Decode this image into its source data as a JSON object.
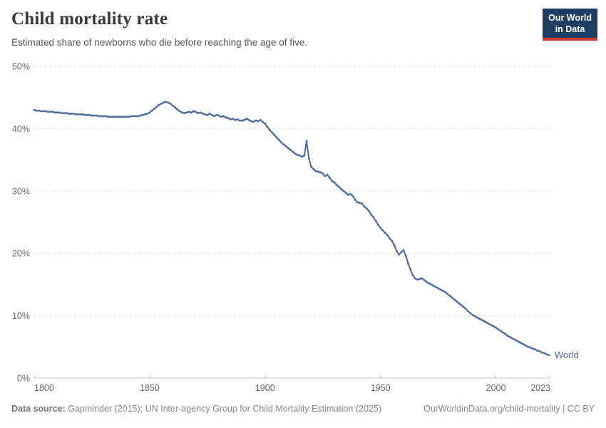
{
  "header": {
    "title": "Child mortality rate",
    "subtitle": "Estimated share of newborns who die before reaching the age of five.",
    "logo_line1": "Our World",
    "logo_line2": "in Data"
  },
  "footer": {
    "source_label": "Data source:",
    "source_text": "Gapminder (2015); UN Inter-agency Group for Child Mortality Estimation (2025)",
    "link": "OurWorldinData.org/child-mortality | CC BY"
  },
  "colors": {
    "line": "#4c6a9d",
    "series_label": "#4c6a9d",
    "grid": "#dedede",
    "axis": "#c0c0c0",
    "tick_text": "#676767",
    "logo_bg": "#1d3d63",
    "logo_red": "#d13c32"
  },
  "chart_data": {
    "type": "line",
    "title": "Child mortality rate",
    "subtitle": "Estimated share of newborns who die before reaching the age of five.",
    "xlabel": "",
    "ylabel": "",
    "x_range": [
      1800,
      2023
    ],
    "y_range": [
      0,
      50
    ],
    "grid": "horizontal-dashed",
    "x_tick_values": [
      1800,
      1850,
      1900,
      1950,
      2000,
      2023
    ],
    "x_tick_labels": [
      "1800",
      "1850",
      "1900",
      "1950",
      "2000",
      "2023"
    ],
    "y_tick_values": [
      0,
      10,
      20,
      30,
      40,
      50
    ],
    "y_tick_labels": [
      "0%",
      "10%",
      "20%",
      "30%",
      "40%",
      "50%"
    ],
    "end_label": "World",
    "series": [
      {
        "name": "World",
        "color": "#4c6a9d",
        "x_start": 1800,
        "x_step": 1,
        "values": [
          43.0,
          42.9,
          42.9,
          42.8,
          42.8,
          42.8,
          42.7,
          42.7,
          42.7,
          42.6,
          42.6,
          42.6,
          42.5,
          42.5,
          42.5,
          42.4,
          42.4,
          42.4,
          42.3,
          42.3,
          42.3,
          42.3,
          42.2,
          42.2,
          42.2,
          42.1,
          42.1,
          42.1,
          42.0,
          42.0,
          42.0,
          42.0,
          41.9,
          41.9,
          41.9,
          41.9,
          41.9,
          41.9,
          41.9,
          41.9,
          41.9,
          41.9,
          42.0,
          42.0,
          42.0,
          42.0,
          42.1,
          42.2,
          42.3,
          42.4,
          42.6,
          42.9,
          43.2,
          43.5,
          43.8,
          44.0,
          44.2,
          44.3,
          44.2,
          44.0,
          43.7,
          43.4,
          43.1,
          42.8,
          42.6,
          42.5,
          42.6,
          42.7,
          42.6,
          42.8,
          42.7,
          42.5,
          42.6,
          42.4,
          42.3,
          42.2,
          42.4,
          42.2,
          42.0,
          42.2,
          42.1,
          41.9,
          42.0,
          41.8,
          41.7,
          41.5,
          41.6,
          41.4,
          41.5,
          41.3,
          41.3,
          41.4,
          41.6,
          41.4,
          41.2,
          41.1,
          41.3,
          41.2,
          41.4,
          41.1,
          40.8,
          40.3,
          39.8,
          39.4,
          39.0,
          38.6,
          38.2,
          37.8,
          37.5,
          37.2,
          36.9,
          36.6,
          36.3,
          36.0,
          35.8,
          35.7,
          35.5,
          35.7,
          38.0,
          35.2,
          33.9,
          33.5,
          33.2,
          33.1,
          33.0,
          32.8,
          32.4,
          32.6,
          32.1,
          31.6,
          31.4,
          31.0,
          30.7,
          30.3,
          30.0,
          29.7,
          29.4,
          29.5,
          29.2,
          28.6,
          28.2,
          28.1,
          28.0,
          27.5,
          27.2,
          26.8,
          26.2,
          25.8,
          25.2,
          24.6,
          24.1,
          23.7,
          23.3,
          22.9,
          22.4,
          22.0,
          21.3,
          20.4,
          19.8,
          20.2,
          20.5,
          19.6,
          18.4,
          17.4,
          16.5,
          16.0,
          15.8,
          15.9,
          16.0,
          15.7,
          15.4,
          15.2,
          15.0,
          14.8,
          14.6,
          14.4,
          14.2,
          14.0,
          13.8,
          13.5,
          13.2,
          12.9,
          12.6,
          12.3,
          12.0,
          11.7,
          11.4,
          11.1,
          10.7,
          10.4,
          10.1,
          9.9,
          9.7,
          9.5,
          9.3,
          9.1,
          8.9,
          8.7,
          8.5,
          8.3,
          8.1,
          7.8,
          7.6,
          7.3,
          7.1,
          6.8,
          6.6,
          6.4,
          6.2,
          6.0,
          5.8,
          5.6,
          5.4,
          5.2,
          5.0,
          4.9,
          4.7,
          4.6,
          4.4,
          4.3,
          4.1,
          4.0,
          3.8,
          3.7
        ]
      }
    ]
  }
}
